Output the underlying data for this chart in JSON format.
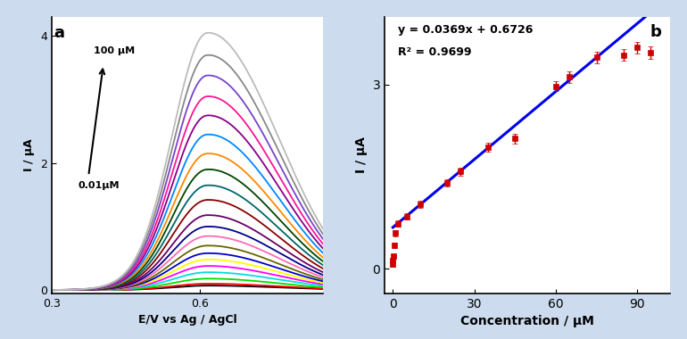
{
  "panel_a": {
    "xlabel": "E/V vs Ag / AgCl",
    "ylabel": "I / μA",
    "label_a": "a",
    "label_100": "100 μM",
    "label_001": "0.01μM",
    "xlim": [
      0.3,
      0.85
    ],
    "ylim": [
      -0.05,
      4.3
    ],
    "yticks": [
      0,
      2,
      4
    ],
    "xticks": [
      0.3,
      0.6
    ],
    "peak_voltage": 0.615,
    "curve_colors": [
      "#000000",
      "#ff0000",
      "#00dd00",
      "#00dddd",
      "#ff00ff",
      "#ffff00",
      "#0000cc",
      "#666600",
      "#ff69b4",
      "#00008b",
      "#660066",
      "#8b0000",
      "#006666",
      "#004400",
      "#ff8800",
      "#0088ff",
      "#880088",
      "#ff1493",
      "#7744cc",
      "#888888",
      "#bbbbbb"
    ],
    "n_curves": 21,
    "peak_heights": [
      0.07,
      0.1,
      0.18,
      0.28,
      0.38,
      0.48,
      0.58,
      0.7,
      0.85,
      1.0,
      1.18,
      1.42,
      1.65,
      1.9,
      2.15,
      2.45,
      2.75,
      3.05,
      3.38,
      3.7,
      4.05
    ]
  },
  "panel_b": {
    "xlabel": "Concentration / μM",
    "ylabel": "I / μA",
    "label_b": "b",
    "equation": "y = 0.0369x + 0.6726",
    "r_squared": "R² = 0.9699",
    "slope": 0.0369,
    "intercept": 0.6726,
    "xlim": [
      -3,
      102
    ],
    "ylim": [
      -0.4,
      4.1
    ],
    "yticks": [
      0,
      3
    ],
    "xticks": [
      0,
      30,
      60,
      90
    ],
    "data_x": [
      0.01,
      0.05,
      0.1,
      0.5,
      1.0,
      2.0,
      5.0,
      10.0,
      20.0,
      25.0,
      35.0,
      45.0,
      60.0,
      65.0,
      75.0,
      85.0,
      90.0,
      95.0
    ],
    "data_y": [
      0.08,
      0.14,
      0.2,
      0.38,
      0.58,
      0.73,
      0.85,
      1.05,
      1.4,
      1.58,
      1.98,
      2.12,
      2.97,
      3.12,
      3.44,
      3.48,
      3.6,
      3.52
    ],
    "data_yerr": [
      0.05,
      0.04,
      0.04,
      0.04,
      0.05,
      0.05,
      0.05,
      0.06,
      0.06,
      0.07,
      0.07,
      0.08,
      0.08,
      0.09,
      0.09,
      0.09,
      0.1,
      0.1
    ],
    "marker_color": "#cc0000",
    "line_color": "#0000ee",
    "line_width": 2.2,
    "marker_size": 5
  },
  "background_color": "#ccdcee",
  "fig_width": 7.7,
  "fig_height": 3.8,
  "dpi": 100
}
